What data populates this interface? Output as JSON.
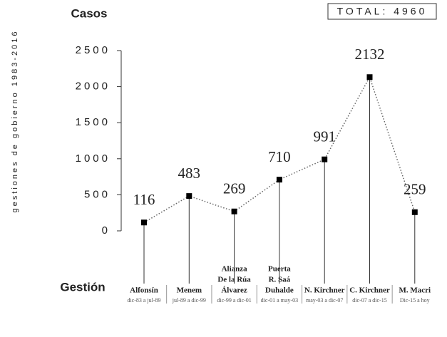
{
  "chart_data": {
    "type": "line",
    "title": "Casos",
    "total": "TOTAL: 4960",
    "y_label": "gestiones de gobierno 1983-2016",
    "x_label": "Gestión",
    "categories": [
      [
        "Alfonsín"
      ],
      [
        "Menem"
      ],
      [
        "Alianza",
        "De la Rúa",
        "Álvarez"
      ],
      [
        "Puerta",
        "R. Saá",
        "Duhalde"
      ],
      [
        "N. Kirchner"
      ],
      [
        "C. Kirchner"
      ],
      [
        "M. Macri"
      ]
    ],
    "periods": [
      "dic-83 a jul-89",
      "jul-89 a dic-99",
      "dic-99 a dic-01",
      "dic-01 a may-03",
      "may-03 a dic-07",
      "dic-07 a dic-15",
      "Dic-15 a hoy"
    ],
    "values": [
      116,
      483,
      269,
      710,
      991,
      2132,
      259
    ],
    "color": "#000000",
    "ylim": [
      0,
      2500
    ],
    "yticks": [
      0,
      500,
      1000,
      1500,
      2000,
      2500
    ]
  }
}
